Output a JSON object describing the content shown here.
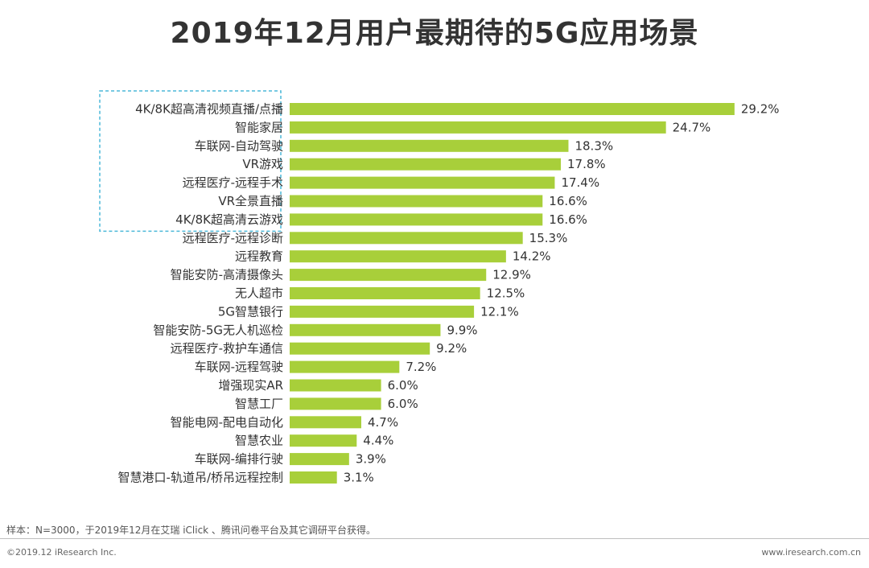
{
  "title": "2019年12月用户最期待的5G应用场景",
  "chart_data": {
    "type": "bar",
    "orientation": "horizontal",
    "title": "2019年12月用户最期待的5G应用场景",
    "categories": [
      "4K/8K超高清视频直播/点播",
      "智能家居",
      "车联网-自动驾驶",
      "VR游戏",
      "远程医疗-远程手术",
      "VR全景直播",
      "4K/8K超高清云游戏",
      "远程医疗-远程诊断",
      "远程教育",
      "智能安防-高清摄像头",
      "无人超市",
      "5G智慧银行",
      "智能安防-5G无人机巡检",
      "远程医疗-救护车通信",
      "车联网-远程驾驶",
      "增强现实AR",
      "智慧工厂",
      "智能电网-配电自动化",
      "智慧农业",
      "车联网-编排行驶",
      "智慧港口-轨道吊/桥吊远程控制"
    ],
    "values": [
      29.2,
      24.7,
      18.3,
      17.8,
      17.4,
      16.6,
      16.6,
      15.3,
      14.2,
      12.9,
      12.5,
      12.1,
      9.9,
      9.2,
      7.2,
      6.0,
      6.0,
      4.7,
      4.4,
      3.9,
      3.1
    ],
    "value_labels": [
      "29.2%",
      "24.7%",
      "18.3%",
      "17.8%",
      "17.4%",
      "16.6%",
      "16.6%",
      "15.3%",
      "14.2%",
      "12.9%",
      "12.5%",
      "12.1%",
      "9.9%",
      "9.2%",
      "7.2%",
      "6.0%",
      "6.0%",
      "4.7%",
      "4.4%",
      "3.9%",
      "3.1%"
    ],
    "unit": "%",
    "xlim": [
      0,
      30
    ],
    "grid": false,
    "highlighted_top_n": 7,
    "bar_color": "#a8cf3a",
    "highlight_box_color": "#4bb8d9"
  },
  "footer": {
    "note": "样本：N=3000，于2019年12月在艾瑞 iClick 、腾讯问卷平台及其它调研平台获得。",
    "copyright": "©2019.12 iResearch Inc.",
    "website": "www.iresearch.com.cn"
  }
}
